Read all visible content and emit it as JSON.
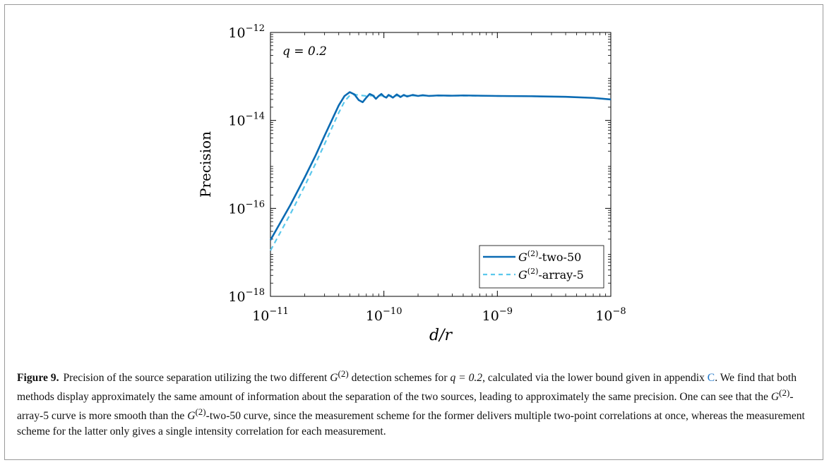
{
  "chart_data": {
    "type": "line",
    "xscale": "log",
    "yscale": "log",
    "xlim": [
      1e-11,
      1e-08
    ],
    "ylim": [
      1e-18,
      1e-12
    ],
    "xlabel": "d/r",
    "ylabel": "Precision",
    "x_ticks": [
      {
        "value": 1e-11,
        "base": "10",
        "exp": "−11"
      },
      {
        "value": 1e-10,
        "base": "10",
        "exp": "−10"
      },
      {
        "value": 1e-09,
        "base": "10",
        "exp": "−9"
      },
      {
        "value": 1e-08,
        "base": "10",
        "exp": "−8"
      }
    ],
    "y_ticks": [
      {
        "value": 1e-18,
        "base": "10",
        "exp": "−18"
      },
      {
        "value": 1e-16,
        "base": "10",
        "exp": "−16"
      },
      {
        "value": 1e-14,
        "base": "10",
        "exp": "−14"
      },
      {
        "value": 1e-12,
        "base": "10",
        "exp": "−12"
      }
    ],
    "annotation": "q = 0.2",
    "legend_position": "bottom-right",
    "grid": false,
    "series": [
      {
        "name": "G(2)-two-50",
        "legend_main": "G",
        "legend_sup": "(2)",
        "legend_suffix": "-two-50",
        "color": "#0b6bb3",
        "style": "solid",
        "x": [
          1e-11,
          1.5e-11,
          2e-11,
          2.5e-11,
          3e-11,
          3.5e-11,
          4e-11,
          4.5e-11,
          5e-11,
          5.5e-11,
          6e-11,
          6.5e-11,
          7e-11,
          7.5e-11,
          8e-11,
          8.5e-11,
          9e-11,
          9.5e-11,
          1e-10,
          1.05e-10,
          1.1e-10,
          1.2e-10,
          1.3e-10,
          1.4e-10,
          1.5e-10,
          1.6e-10,
          1.8e-10,
          2e-10,
          2.2e-10,
          2.5e-10,
          3e-10,
          4e-10,
          5e-10,
          7e-10,
          1e-09,
          2e-09,
          4e-09,
          7e-09,
          1e-08
        ],
        "y": [
          1.9e-17,
          1.2e-16,
          5e-16,
          1.6e-15,
          4.5e-15,
          1.05e-14,
          2.2e-14,
          3.6e-14,
          4.4e-14,
          3.9e-14,
          2.9e-14,
          2.6e-14,
          3.3e-14,
          4e-14,
          3.7e-14,
          3.1e-14,
          3.6e-14,
          4e-14,
          3.5e-14,
          3.3e-14,
          3.8e-14,
          3.3e-14,
          3.9e-14,
          3.4e-14,
          3.8e-14,
          3.5e-14,
          3.8e-14,
          3.6e-14,
          3.75e-14,
          3.6e-14,
          3.7e-14,
          3.65e-14,
          3.7e-14,
          3.65e-14,
          3.6e-14,
          3.55e-14,
          3.45e-14,
          3.25e-14,
          3e-14
        ]
      },
      {
        "name": "G(2)-array-5",
        "legend_main": "G",
        "legend_sup": "(2)",
        "legend_suffix": "-array-5",
        "color": "#5bc8ec",
        "style": "dashed",
        "x": [
          1e-11,
          1.5e-11,
          2e-11,
          2.5e-11,
          3e-11,
          3.5e-11,
          4e-11,
          4.5e-11,
          5e-11,
          5.5e-11,
          6e-11,
          7e-11,
          8e-11,
          1e-10,
          1.5e-10,
          2e-10,
          3e-10,
          5e-10,
          1e-09,
          2e-09,
          4e-09,
          7e-09,
          1e-08
        ],
        "y": [
          1.1e-17,
          7.5e-17,
          3.2e-16,
          1.05e-15,
          2.9e-15,
          7e-15,
          1.5e-14,
          2.7e-14,
          3.7e-14,
          3.9e-14,
          3.75e-14,
          3.6e-14,
          3.65e-14,
          3.65e-14,
          3.65e-14,
          3.65e-14,
          3.65e-14,
          3.65e-14,
          3.6e-14,
          3.55e-14,
          3.45e-14,
          3.25e-14,
          3e-14
        ]
      }
    ]
  },
  "caption": {
    "label": "Figure 9.",
    "pre_q": "Precision of the source separation utilizing the two different ",
    "g_main": "G",
    "g_sup": "(2)",
    "after_g": " detection schemes for ",
    "q_expr": "q = 0.2",
    "mid": ", calculated via the lower bound given in appendix ",
    "appendix": "C",
    "post_appendix": ". We find that both methods display approximately the same amount of information about the separation of the two sources, leading to approximately the same precision. One can see that the ",
    "g2_main": "G",
    "g2_sup": "(2)",
    "after_g2": "-array-5 curve is more smooth than the ",
    "g3_main": "G",
    "g3_sup": "(2)",
    "tail": "-two-50 curve, since the measurement scheme for the former delivers multiple two-point correlations at once, whereas the measurement scheme for the latter only gives a single intensity correlation for each measurement."
  }
}
